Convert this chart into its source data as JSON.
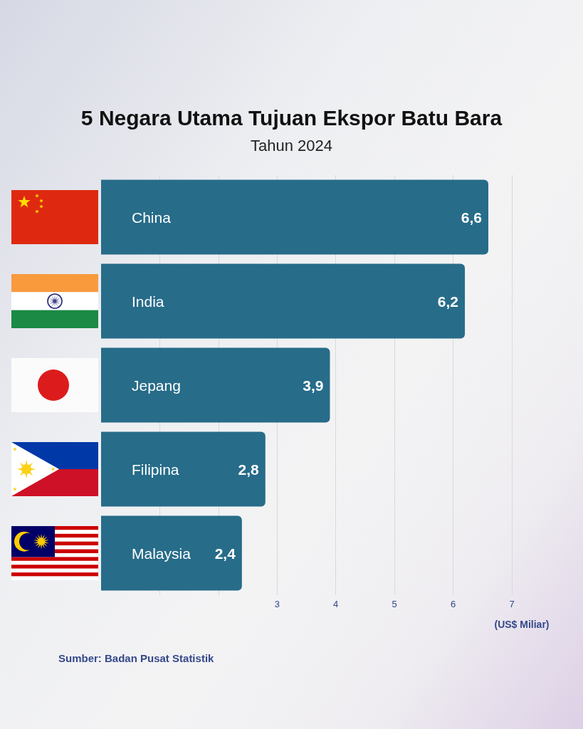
{
  "chart_data": {
    "type": "bar",
    "orientation": "horizontal",
    "title": "5 Negara Utama Tujuan Ekspor Batu Bara",
    "subtitle": "Tahun 2024",
    "xlabel": "(US$ Miliar)",
    "annotations": [
      "Sumber: Badan Pusat Statistik"
    ],
    "categories": [
      "China",
      "India",
      "Jepang",
      "Filipina",
      "Malaysia"
    ],
    "values": [
      6.6,
      6.2,
      3.9,
      2.8,
      2.4
    ],
    "value_labels": [
      "6,6",
      "6,2",
      "3,9",
      "2,8",
      "2,4"
    ],
    "color": "#276c89",
    "xlim": [
      0,
      7
    ],
    "xticks": [
      {
        "value": 1,
        "label": null
      },
      {
        "value": 2,
        "label": null
      },
      3,
      4,
      5,
      6,
      7
    ],
    "grid": "x"
  }
}
